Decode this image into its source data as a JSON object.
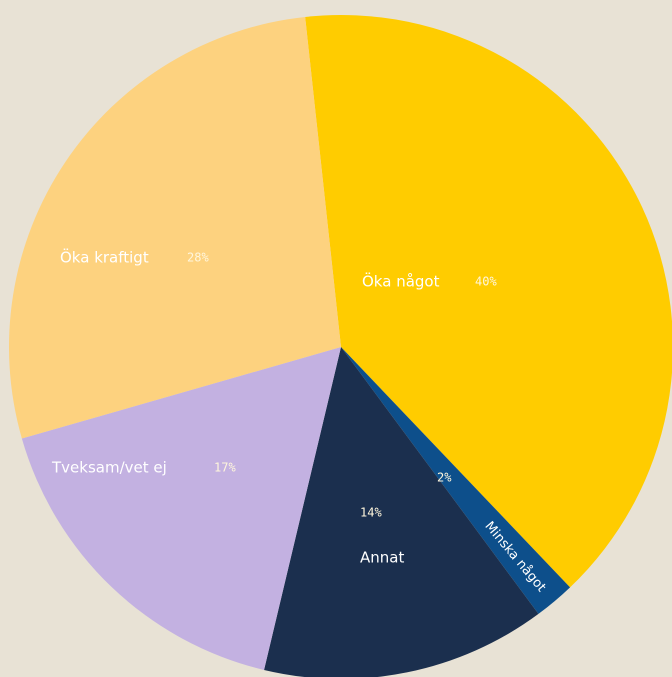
{
  "chart_data": {
    "type": "pie",
    "categories": [
      "Öka något",
      "Minska något",
      "Annat",
      "Tveksam/vet ej",
      "Öka kraftigt"
    ],
    "values": [
      40,
      2,
      14,
      17,
      28
    ],
    "value_labels": [
      "40%",
      "2%",
      "14%",
      "17%",
      "28%"
    ],
    "colors": [
      "#ffcc00",
      "#0d4f8b",
      "#1b2f4e",
      "#c3b1e1",
      "#fdd27f"
    ]
  }
}
